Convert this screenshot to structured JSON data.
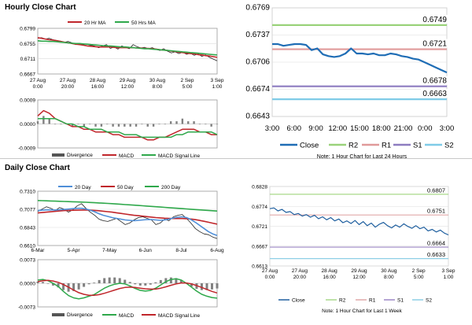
{
  "sections": {
    "hourly_title": "Hourly Close Chart",
    "daily_title": "Daily Close Chart"
  },
  "colors": {
    "close": "#1f5f9f",
    "ma20": "#c0262b",
    "ma50": "#2fa84b",
    "ma_blue": "#4f8fd8",
    "price": "#222222",
    "hist": "#808080",
    "r2": "#a8d88a",
    "r1": "#e0a8a8",
    "s1": "#9c87c5",
    "s2": "#8ecfe6",
    "r2_big": "#9ad27a",
    "r1_big": "#e09a9a",
    "s1_big": "#8d7cc0",
    "s2_big": "#7fcbe7",
    "close_big": "#1f6db5"
  },
  "chart_data": [
    {
      "id": "hourly-price",
      "type": "line",
      "legend": [
        "20 Hr MA",
        "50 Hrs MA"
      ],
      "legend_placement": "top",
      "ylim": [
        0.6667,
        0.6799
      ],
      "yticks": [
        "0.6799",
        "0.6755",
        "0.6711",
        "0.6667"
      ],
      "xticks": [
        [
          "27 Aug",
          "0:00"
        ],
        [
          "27 Aug",
          "20:00"
        ],
        [
          "28 Aug",
          "16:00"
        ],
        [
          "29 Aug",
          "12:00"
        ],
        [
          "30 Aug",
          "8:00"
        ],
        [
          "2 Sep",
          "5:00"
        ],
        [
          "3 Sep",
          "1:00"
        ]
      ],
      "price": [
        0.677,
        0.6772,
        0.6768,
        0.677,
        0.6766,
        0.6764,
        0.6762,
        0.6759,
        0.6761,
        0.6757,
        0.6752,
        0.6755,
        0.6752,
        0.6748,
        0.675,
        0.6747,
        0.6743,
        0.6748,
        0.6752,
        0.6741,
        0.6745,
        0.6739,
        0.6748,
        0.6744,
        0.674,
        0.6752,
        0.6746,
        0.6742,
        0.6744,
        0.674,
        0.6743,
        0.6738,
        0.6735,
        0.674,
        0.6733,
        0.6728,
        0.6731,
        0.6726,
        0.673,
        0.6724,
        0.6727,
        0.6721,
        0.6725,
        0.6718,
        0.6722,
        0.6715,
        0.671,
        0.6705
      ],
      "ma20": [
        0.6772,
        0.677,
        0.6768,
        0.6766,
        0.6765,
        0.6763,
        0.6761,
        0.6759,
        0.6757,
        0.6755,
        0.6753,
        0.6752,
        0.675,
        0.6748,
        0.6747,
        0.6746,
        0.6745,
        0.6745,
        0.6745,
        0.6745,
        0.6744,
        0.6743,
        0.6743,
        0.6743,
        0.6743,
        0.6743,
        0.6742,
        0.6742,
        0.6741,
        0.6741,
        0.674,
        0.6739,
        0.6737,
        0.6736,
        0.6735,
        0.6733,
        0.6732,
        0.673,
        0.6729,
        0.6727,
        0.6726,
        0.6725,
        0.6723,
        0.6722,
        0.672,
        0.6719,
        0.6717,
        0.6715
      ],
      "ma50": [
        0.6763,
        0.6762,
        0.6762,
        0.6761,
        0.6761,
        0.676,
        0.6759,
        0.6758,
        0.6757,
        0.6756,
        0.6755,
        0.6755,
        0.6754,
        0.6753,
        0.6752,
        0.6751,
        0.675,
        0.6749,
        0.6748,
        0.6748,
        0.6747,
        0.6746,
        0.6745,
        0.6745,
        0.6744,
        0.6743,
        0.6742,
        0.6741,
        0.674,
        0.674,
        0.6739,
        0.6738,
        0.6737,
        0.6736,
        0.6735,
        0.6734,
        0.6733,
        0.6732,
        0.6731,
        0.673,
        0.6729,
        0.6728,
        0.6727,
        0.6726,
        0.6725,
        0.6724,
        0.6723,
        0.6722
      ]
    },
    {
      "id": "hourly-macd",
      "type": "line",
      "ylim": [
        -0.0009,
        0.0009
      ],
      "yticks": [
        "0.0009",
        "0.0000",
        "-0.0009"
      ],
      "legend": [
        "Divergence",
        "MACD",
        "MACD Signal Line"
      ],
      "legend_placement": "bottom",
      "macd": [
        0.0003,
        0.0005,
        0.0004,
        0.0002,
        0.0001,
        0.0,
        -0.0001,
        -0.0001,
        -0.0002,
        -0.0002,
        -0.0003,
        -0.0003,
        -0.0003,
        -0.0004,
        -0.0004,
        -0.0005,
        -0.0005,
        -0.0005,
        -0.0005,
        -0.0006,
        -0.0006,
        -0.0005,
        -0.0005,
        -0.0004,
        -0.0003,
        -0.0002,
        -0.0002,
        -0.0002,
        -0.0003,
        -0.0003,
        -0.0004,
        -0.0004
      ],
      "signal": [
        0.0002,
        0.0002,
        0.0002,
        0.0002,
        0.0001,
        0.0,
        0.0,
        -0.0001,
        -0.0001,
        -0.0002,
        -0.0002,
        -0.0002,
        -0.0003,
        -0.0003,
        -0.0003,
        -0.0004,
        -0.0004,
        -0.0004,
        -0.0005,
        -0.0005,
        -0.0005,
        -0.0005,
        -0.0005,
        -0.0005,
        -0.0004,
        -0.0004,
        -0.0003,
        -0.0003,
        -0.0003,
        -0.0003,
        -0.0003,
        -0.0004
      ],
      "divergence": [
        0.0001,
        0.0003,
        0.0002,
        0.0,
        0.0,
        0.0,
        -0.0001,
        0.0,
        -0.0001,
        0.0,
        -0.0001,
        -0.0001,
        0.0,
        -0.0001,
        -0.0001,
        -0.0001,
        -0.0001,
        -0.0001,
        0.0,
        -0.0001,
        -0.0001,
        0.0,
        0.0,
        0.0001,
        0.0001,
        0.0002,
        0.0001,
        0.0001,
        0.0,
        0.0,
        -0.0001,
        0.0
      ]
    },
    {
      "id": "hourly-pivot",
      "type": "line",
      "ylim": [
        0.6643,
        0.6769
      ],
      "yticks": [
        "0.6769",
        "0.6737",
        "0.6706",
        "0.6674",
        "0.6643"
      ],
      "xticks": [
        "3:00",
        "6:00",
        "9:00",
        "12:00",
        "15:00",
        "18:00",
        "21:00",
        "0:00",
        "3:00"
      ],
      "legend": [
        "Close",
        "R2",
        "R1",
        "S1",
        "S2"
      ],
      "legend_placement": "bottom",
      "note": "Note: 1 Hour Chart for Last 24 Hours",
      "levels": {
        "R2": 0.6749,
        "R1": 0.6721,
        "S1": 0.6678,
        "S2": 0.6663
      },
      "level_labels": {
        "R2": "0.6749",
        "R1": "0.6721",
        "S1": "0.6678",
        "S2": "0.6663"
      },
      "close": [
        0.6727,
        0.6727,
        0.6725,
        0.6726,
        0.6727,
        0.6727,
        0.6726,
        0.672,
        0.6722,
        0.6715,
        0.6713,
        0.6712,
        0.6713,
        0.6716,
        0.6722,
        0.6716,
        0.6716,
        0.6715,
        0.6716,
        0.6714,
        0.6714,
        0.6716,
        0.6715,
        0.6713,
        0.6712,
        0.671,
        0.6709,
        0.6706,
        0.6703,
        0.67,
        0.6697,
        0.6694
      ]
    },
    {
      "id": "daily-price",
      "type": "line",
      "legend": [
        "20 Day",
        "50 Day",
        "200 Day"
      ],
      "legend_placement": "top",
      "ylim": [
        0.661,
        0.731
      ],
      "yticks": [
        "0.7310",
        "0.7077",
        "0.6843",
        "0.6610"
      ],
      "xticks": [
        "6-Mar",
        "5-Apr",
        "7-May",
        "6-Jun",
        "8-Jul",
        "6-Aug"
      ],
      "price": [
        0.705,
        0.708,
        0.711,
        0.709,
        0.706,
        0.71,
        0.708,
        0.704,
        0.707,
        0.712,
        0.715,
        0.709,
        0.704,
        0.7,
        0.695,
        0.693,
        0.692,
        0.694,
        0.696,
        0.692,
        0.688,
        0.69,
        0.694,
        0.697,
        0.698,
        0.696,
        0.694,
        0.688,
        0.69,
        0.695,
        0.693,
        0.698,
        0.7,
        0.701,
        0.696,
        0.69,
        0.683,
        0.679,
        0.676,
        0.675,
        0.672,
        0.67
      ],
      "ma20": [
        0.706,
        0.7065,
        0.707,
        0.707,
        0.7068,
        0.7072,
        0.7075,
        0.708,
        0.7085,
        0.709,
        0.709,
        0.708,
        0.7065,
        0.7045,
        0.702,
        0.7,
        0.6985,
        0.697,
        0.696,
        0.695,
        0.694,
        0.6935,
        0.693,
        0.6935,
        0.694,
        0.6945,
        0.6945,
        0.694,
        0.6935,
        0.694,
        0.695,
        0.6965,
        0.6975,
        0.698,
        0.697,
        0.6945,
        0.691,
        0.687,
        0.683,
        0.679,
        0.676,
        0.674
      ],
      "ma50": [
        0.703,
        0.7035,
        0.704,
        0.7045,
        0.705,
        0.7055,
        0.706,
        0.7062,
        0.7064,
        0.7066,
        0.7068,
        0.7068,
        0.7066,
        0.7062,
        0.7058,
        0.7052,
        0.7046,
        0.704,
        0.7032,
        0.7024,
        0.7016,
        0.7008,
        0.7,
        0.6994,
        0.6988,
        0.6982,
        0.6976,
        0.697,
        0.6966,
        0.6962,
        0.696,
        0.6958,
        0.6958,
        0.6958,
        0.6956,
        0.6952,
        0.6944,
        0.6934,
        0.6922,
        0.691,
        0.6898,
        0.6886
      ],
      "ma200": [
        0.719,
        0.7188,
        0.7186,
        0.7184,
        0.7182,
        0.718,
        0.7178,
        0.7176,
        0.7174,
        0.7172,
        0.717,
        0.7168,
        0.7165,
        0.7162,
        0.7159,
        0.7156,
        0.7153,
        0.715,
        0.7146,
        0.7142,
        0.7138,
        0.7134,
        0.713,
        0.7126,
        0.7122,
        0.7118,
        0.7114,
        0.711,
        0.7106,
        0.7102,
        0.7098,
        0.7094,
        0.709,
        0.7086,
        0.7082,
        0.7078,
        0.7074,
        0.707,
        0.7066,
        0.7062,
        0.7058,
        0.7054
      ]
    },
    {
      "id": "daily-macd",
      "type": "line",
      "ylim": [
        -0.0073,
        0.0073
      ],
      "yticks": [
        "0.0073",
        "0.0000",
        "-0.0073"
      ],
      "legend": [
        "Divergence",
        "MACD",
        "MACD Signal Line"
      ],
      "legend_placement": "bottom",
      "macd": [
        0.001,
        0.0012,
        0.0008,
        0.0,
        -0.001,
        -0.0025,
        -0.0038,
        -0.0045,
        -0.0048,
        -0.0045,
        -0.004,
        -0.0035,
        -0.0025,
        -0.0015,
        -0.0008,
        -0.0003,
        0.0,
        -0.0002,
        -0.0008,
        -0.0016,
        -0.0022,
        -0.0024,
        -0.0022,
        -0.0015,
        -0.0005,
        0.0005,
        0.0012,
        0.0014,
        0.001,
        0.0,
        -0.0012,
        -0.0024,
        -0.0034,
        -0.004,
        -0.0044,
        -0.0046
      ],
      "signal": [
        0.0005,
        0.0008,
        0.0009,
        0.0007,
        0.0003,
        -0.0004,
        -0.0012,
        -0.0021,
        -0.0029,
        -0.0034,
        -0.0037,
        -0.0037,
        -0.0035,
        -0.0031,
        -0.0026,
        -0.0021,
        -0.0016,
        -0.0013,
        -0.0012,
        -0.0013,
        -0.0015,
        -0.0017,
        -0.0018,
        -0.0018,
        -0.0015,
        -0.0011,
        -0.0006,
        -0.0002,
        0.0001,
        0.0001,
        -0.0002,
        -0.0007,
        -0.0013,
        -0.0019,
        -0.0025,
        -0.003
      ],
      "divergence": [
        0.0005,
        0.0004,
        -0.0001,
        -0.0007,
        -0.0013,
        -0.0021,
        -0.0026,
        -0.0024,
        -0.0019,
        -0.0011,
        -0.0003,
        0.0002,
        0.001,
        0.0016,
        0.0018,
        0.0018,
        0.0016,
        0.0011,
        0.0004,
        -0.0003,
        -0.0007,
        -0.0007,
        -0.0004,
        0.0003,
        0.001,
        0.0016,
        0.0018,
        0.0016,
        0.0009,
        -0.0001,
        -0.001,
        -0.0017,
        -0.0021,
        -0.0021,
        -0.0019,
        -0.0016
      ]
    },
    {
      "id": "daily-pivot",
      "type": "line",
      "ylim": [
        0.6613,
        0.6828
      ],
      "yticks": [
        "0.6828",
        "0.6774",
        "0.6721",
        "0.6667",
        "0.6613"
      ],
      "xticks": [
        [
          "27 Aug",
          "0:00"
        ],
        [
          "27 Aug",
          "20:00"
        ],
        [
          "28 Aug",
          "16:00"
        ],
        [
          "29 Aug",
          "12:00"
        ],
        [
          "30 Aug",
          "8:00"
        ],
        [
          "2 Sep",
          "5:00"
        ],
        [
          "3 Sep",
          "1:00"
        ]
      ],
      "legend": [
        "Close",
        "R2",
        "R1",
        "S1",
        "S2"
      ],
      "legend_placement": "bottom",
      "note": "Note: 1 Hour Chart for Last 1 Week",
      "levels": {
        "R2": 0.6807,
        "R1": 0.6751,
        "S1": 0.6664,
        "S2": 0.6633
      },
      "level_labels": {
        "R2": "0.6807",
        "R1": "0.6751",
        "S1": "0.6664",
        "S2": "0.6633"
      },
      "close": [
        0.6768,
        0.677,
        0.6762,
        0.6766,
        0.6758,
        0.676,
        0.6752,
        0.6755,
        0.6748,
        0.6752,
        0.6745,
        0.675,
        0.6741,
        0.6746,
        0.6738,
        0.6744,
        0.6735,
        0.674,
        0.673,
        0.6735,
        0.6728,
        0.6736,
        0.6725,
        0.6733,
        0.6722,
        0.6729,
        0.6718,
        0.6726,
        0.6731,
        0.6722,
        0.6716,
        0.6724,
        0.6718,
        0.6727,
        0.672,
        0.6715,
        0.6722,
        0.6714,
        0.6718,
        0.6708,
        0.6712,
        0.6705,
        0.671,
        0.6702,
        0.6697
      ]
    }
  ]
}
